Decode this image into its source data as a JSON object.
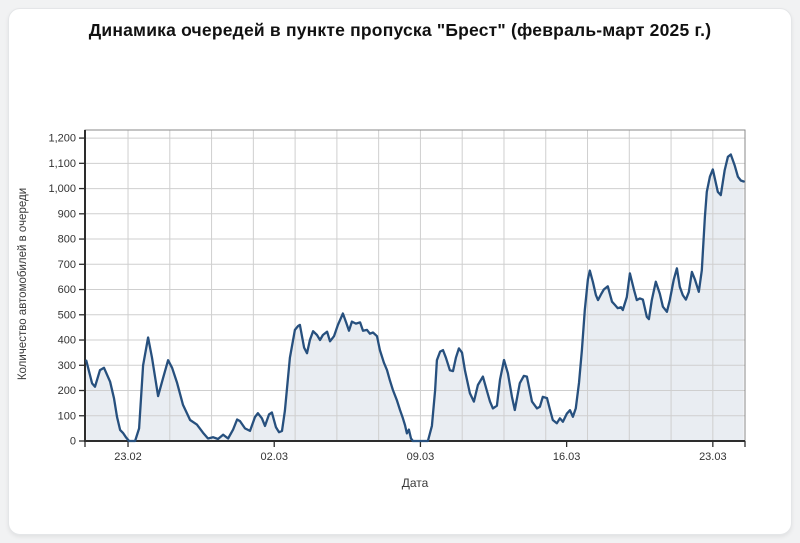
{
  "page": {
    "background": "#f1f2f3",
    "card_background": "#ffffff"
  },
  "chart_data": {
    "type": "area",
    "title": "Динамика очередей в пункте пропуска \"Брест\" (февраль-март 2025 г.)",
    "xlabel": "Дата",
    "ylabel": "Количество автомобилей в очереди",
    "x_unit": "days since 21.02.2025 00:00",
    "xlim_days": [
      -0.06,
      31.54
    ],
    "ylim": [
      0,
      1232
    ],
    "grid": true,
    "legend": "none",
    "line_color": "#27507e",
    "fill_color": "#e9edf2",
    "gridline_color": "#cfcfcf",
    "axis_color": "#2d2d2d",
    "frame_color": "#8a8a8a",
    "x_tick_days": [
      2,
      9,
      16,
      23,
      30
    ],
    "x_tick_labels": [
      "23.02",
      "02.03",
      "09.03",
      "16.03",
      "23.03"
    ],
    "x_gridline_days": [
      2,
      4,
      6,
      8,
      10,
      12,
      14,
      16,
      18,
      20,
      22,
      24,
      26,
      28,
      30
    ],
    "y_ticks": [
      0,
      100,
      200,
      300,
      400,
      500,
      600,
      700,
      800,
      900,
      1000,
      1100,
      1200
    ],
    "y_tick_labels": [
      "0",
      "100",
      "200",
      "300",
      "400",
      "500",
      "600",
      "700",
      "800",
      "900",
      "1,000",
      "1,100",
      "1,200"
    ],
    "x_days": [
      0,
      0.28,
      0.42,
      0.66,
      0.85,
      1.14,
      1.33,
      1.47,
      1.62,
      1.76,
      1.9,
      2.05,
      2.34,
      2.53,
      2.72,
      2.96,
      3.15,
      3.44,
      3.68,
      3.92,
      4.11,
      4.35,
      4.63,
      4.97,
      5.3,
      5.59,
      5.83,
      6.07,
      6.31,
      6.55,
      6.79,
      7.03,
      7.22,
      7.36,
      7.6,
      7.84,
      8.08,
      8.22,
      8.41,
      8.56,
      8.75,
      8.89,
      9.08,
      9.23,
      9.37,
      9.51,
      9.75,
      9.99,
      10.14,
      10.23,
      10.43,
      10.57,
      10.71,
      10.86,
      11.05,
      11.19,
      11.33,
      11.53,
      11.67,
      11.86,
      12.05,
      12.29,
      12.44,
      12.58,
      12.72,
      12.91,
      13.11,
      13.25,
      13.44,
      13.58,
      13.73,
      13.92,
      14.06,
      14.25,
      14.4,
      14.54,
      14.68,
      14.88,
      15.02,
      15.16,
      15.26,
      15.35,
      15.45,
      15.55,
      15.64,
      15.98,
      16.36,
      16.55,
      16.7,
      16.79,
      16.94,
      17.08,
      17.22,
      17.41,
      17.56,
      17.7,
      17.84,
      17.99,
      18.13,
      18.37,
      18.56,
      18.75,
      18.99,
      19.18,
      19.33,
      19.47,
      19.66,
      19.81,
      20,
      20.19,
      20.38,
      20.52,
      20.76,
      20.95,
      21.1,
      21.34,
      21.58,
      21.72,
      21.86,
      22.06,
      22.2,
      22.34,
      22.53,
      22.68,
      22.82,
      23.01,
      23.16,
      23.3,
      23.44,
      23.59,
      23.73,
      23.87,
      24.02,
      24.11,
      24.26,
      24.4,
      24.5,
      24.64,
      24.78,
      24.97,
      25.17,
      25.31,
      25.45,
      25.6,
      25.69,
      25.88,
      26.03,
      26.22,
      26.36,
      26.51,
      26.65,
      26.84,
      26.94,
      27.08,
      27.27,
      27.46,
      27.61,
      27.8,
      27.94,
      28.13,
      28.28,
      28.42,
      28.56,
      28.71,
      28.85,
      29,
      29.14,
      29.33,
      29.47,
      29.62,
      29.71,
      29.86,
      30,
      30.24,
      30.38,
      30.57,
      30.72,
      30.86,
      31.05,
      31.2,
      31.34,
      31.48
    ],
    "values": [
      318,
      228,
      215,
      281,
      290,
      235,
      169,
      96,
      44,
      32,
      15,
      0,
      0,
      50,
      300,
      410,
      330,
      178,
      250,
      320,
      290,
      230,
      143,
      83,
      65,
      33,
      10,
      15,
      8,
      25,
      10,
      45,
      85,
      79,
      50,
      40,
      95,
      110,
      90,
      60,
      105,
      113,
      55,
      35,
      40,
      120,
      330,
      440,
      455,
      460,
      370,
      348,
      400,
      435,
      420,
      400,
      420,
      433,
      395,
      415,
      460,
      505,
      470,
      437,
      473,
      465,
      470,
      437,
      440,
      425,
      430,
      415,
      360,
      310,
      281,
      240,
      202,
      160,
      123,
      90,
      63,
      30,
      45,
      10,
      0,
      0,
      0,
      60,
      200,
      320,
      354,
      360,
      330,
      280,
      277,
      330,
      367,
      350,
      281,
      189,
      156,
      222,
      255,
      200,
      156,
      129,
      140,
      243,
      321,
      268,
      176,
      123,
      229,
      258,
      255,
      156,
      129,
      136,
      175,
      170,
      125,
      83,
      70,
      90,
      76,
      108,
      122,
      96,
      130,
      230,
      360,
      519,
      640,
      675,
      630,
      578,
      558,
      580,
      600,
      613,
      552,
      539,
      526,
      530,
      519,
      570,
      664,
      600,
      558,
      565,
      560,
      492,
      483,
      558,
      631,
      584,
      532,
      512,
      558,
      640,
      684,
      611,
      578,
      560,
      590,
      670,
      640,
      591,
      676,
      888,
      987,
      1047,
      1076,
      987,
      974,
      1073,
      1126,
      1135,
      1090,
      1047,
      1032,
      1028
    ]
  }
}
